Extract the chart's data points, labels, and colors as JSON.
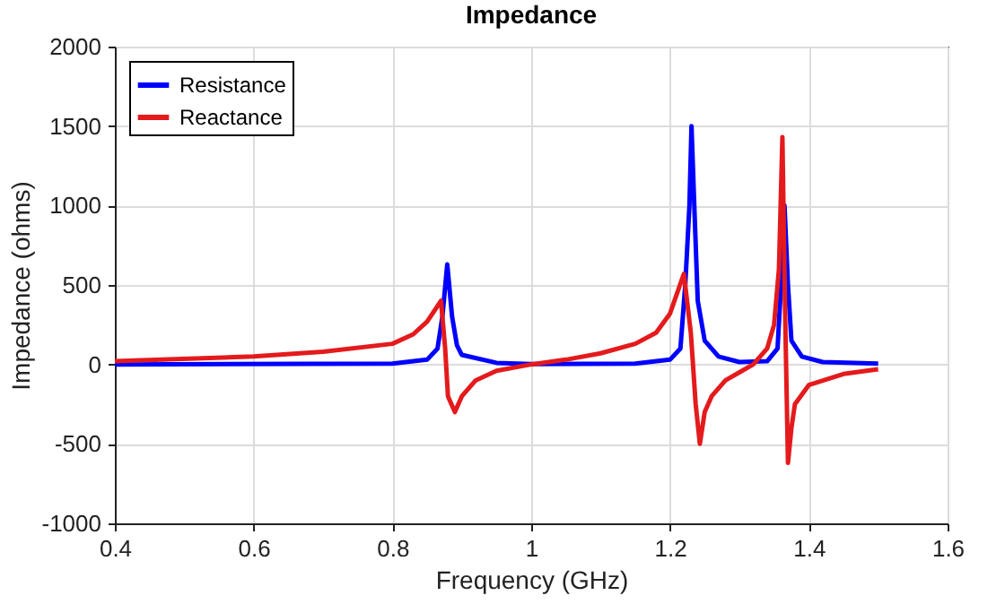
{
  "chart_data": {
    "type": "line",
    "title": "Impedance",
    "xlabel": "Frequency (GHz)",
    "ylabel": "Impedance (ohms)",
    "xlim": [
      0.4,
      1.6
    ],
    "xticks": [
      0.4,
      0.6,
      0.8,
      1,
      1.2,
      1.4,
      1.6
    ],
    "ylim": [
      -1000,
      2000
    ],
    "yticks": [
      -1000,
      -500,
      0,
      500,
      1000,
      1500,
      2000
    ],
    "grid": true,
    "legend": "top left",
    "line_style": "solid",
    "series": [
      {
        "name": "Resistance",
        "color": "#0000ff",
        "x": [
          0.4,
          0.8,
          0.85,
          0.865,
          0.872,
          0.879,
          0.886,
          0.893,
          0.9,
          0.95,
          1.0,
          1.15,
          1.2,
          1.215,
          1.222,
          1.228,
          1.231,
          1.235,
          1.24,
          1.25,
          1.27,
          1.3,
          1.34,
          1.355,
          1.36,
          1.365,
          1.37,
          1.375,
          1.39,
          1.42,
          1.5
        ],
        "values": [
          0,
          5,
          30,
          100,
          300,
          630,
          300,
          120,
          60,
          10,
          3,
          5,
          30,
          100,
          500,
          1000,
          1500,
          1000,
          400,
          150,
          50,
          15,
          20,
          100,
          500,
          1000,
          500,
          150,
          50,
          15,
          5
        ]
      },
      {
        "name": "Reactance",
        "color": "#e41a1c",
        "x": [
          0.4,
          0.6,
          0.7,
          0.8,
          0.83,
          0.85,
          0.87,
          0.876,
          0.88,
          0.89,
          0.9,
          0.92,
          0.95,
          1.0,
          1.05,
          1.1,
          1.15,
          1.18,
          1.2,
          1.22,
          1.23,
          1.237,
          1.243,
          1.25,
          1.26,
          1.28,
          1.3,
          1.32,
          1.34,
          1.35,
          1.357,
          1.362,
          1.366,
          1.37,
          1.375,
          1.38,
          1.4,
          1.45,
          1.5
        ],
        "values": [
          20,
          50,
          80,
          130,
          190,
          270,
          400,
          100,
          -200,
          -300,
          -200,
          -100,
          -40,
          0,
          30,
          70,
          130,
          200,
          320,
          570,
          200,
          -250,
          -500,
          -300,
          -200,
          -100,
          -50,
          0,
          100,
          250,
          600,
          1430,
          300,
          -620,
          -400,
          -250,
          -130,
          -60,
          -30
        ]
      }
    ]
  }
}
